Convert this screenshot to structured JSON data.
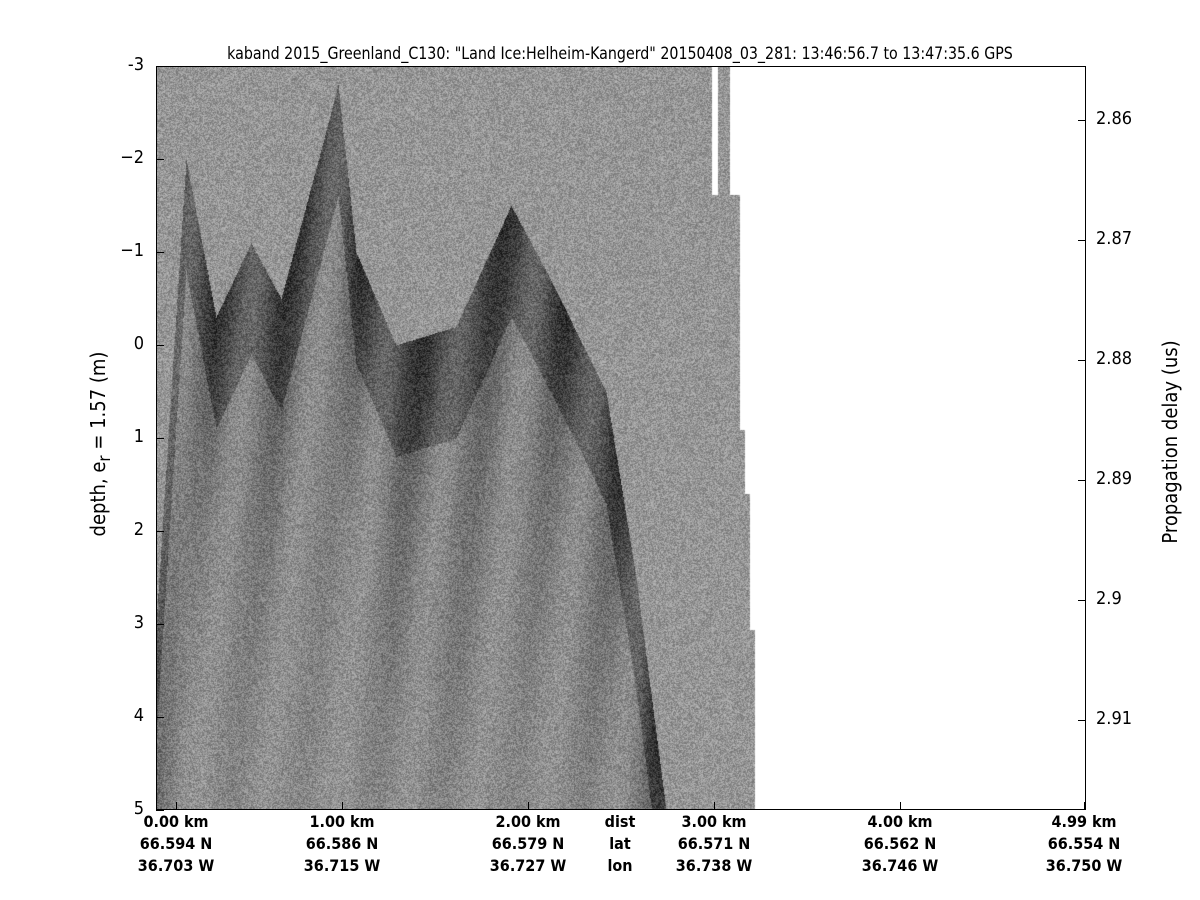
{
  "chart_data": {
    "type": "heatmap",
    "title": "kaband 2015_Greenland_C130: \"Land Ice:Helheim-Kangerd\"  20150408_03_281: 13:46:56.7 to 13:47:35.6 GPS",
    "ylabel": "depth, e_r = 1.57 (m)",
    "ylabel_parts": {
      "pre": "depth, e",
      "sub": "r",
      "post": " = 1.57 (m)"
    },
    "y2label": "Propagation delay (us)",
    "ylim": [
      -3,
      5
    ],
    "y_ticks": [
      "-3",
      "−2",
      "−1",
      "0",
      "1",
      "2",
      "3",
      "4",
      "5"
    ],
    "y2_ticks": [
      "2.86",
      "2.87",
      "2.88",
      "2.89",
      "2.9",
      "2.91"
    ],
    "x_rows": [
      {
        "label": "dist",
        "values": [
          "0.00 km",
          "1.00 km",
          "2.00 km",
          "3.00 km",
          "4.00 km",
          "4.99 km"
        ]
      },
      {
        "label": "lat",
        "values": [
          "66.594 N",
          "66.586 N",
          "66.579 N",
          "66.571 N",
          "66.562 N",
          "66.554 N"
        ]
      },
      {
        "label": "lon",
        "values": [
          "36.703 W",
          "36.715 W",
          "36.727 W",
          "36.738 W",
          "36.746 W",
          "36.750 W"
        ]
      }
    ],
    "colormap": "gray",
    "grid": false
  }
}
